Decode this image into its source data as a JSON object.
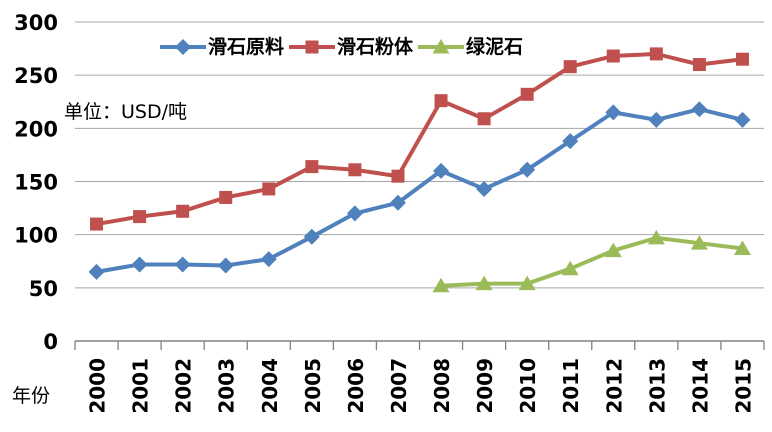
{
  "chart_data": {
    "type": "line",
    "unit_label": "单位：USD/吨",
    "xlabel": "年份",
    "grid": true,
    "legend_position": "top",
    "categories": [
      "2000",
      "2001",
      "2002",
      "2003",
      "2004",
      "2005",
      "2006",
      "2007",
      "2008",
      "2009",
      "2010",
      "2011",
      "2012",
      "2013",
      "2014",
      "2015"
    ],
    "y_axis": {
      "min": 0,
      "max": 300,
      "step": 50,
      "ticks": [
        "0",
        "50",
        "100",
        "150",
        "200",
        "250",
        "300"
      ]
    },
    "series": [
      {
        "name": "滑石原料",
        "color": "#4F81BD",
        "marker": "diamond",
        "values": [
          65,
          72,
          72,
          71,
          77,
          98,
          120,
          130,
          160,
          143,
          161,
          188,
          215,
          208,
          218,
          208
        ]
      },
      {
        "name": "滑石粉体",
        "color": "#C0504D",
        "marker": "square",
        "values": [
          110,
          117,
          122,
          135,
          143,
          164,
          161,
          155,
          226,
          209,
          232,
          258,
          268,
          270,
          260,
          265
        ]
      },
      {
        "name": "绿泥石",
        "color": "#9BBB59",
        "marker": "triangle",
        "values": [
          null,
          null,
          null,
          null,
          null,
          null,
          null,
          null,
          52,
          54,
          54,
          68,
          85,
          97,
          92,
          87
        ]
      }
    ],
    "colors": {
      "gridline": "#A6A6A6",
      "axis": "#808080",
      "text": "#000000",
      "background": "#FFFFFF"
    }
  }
}
